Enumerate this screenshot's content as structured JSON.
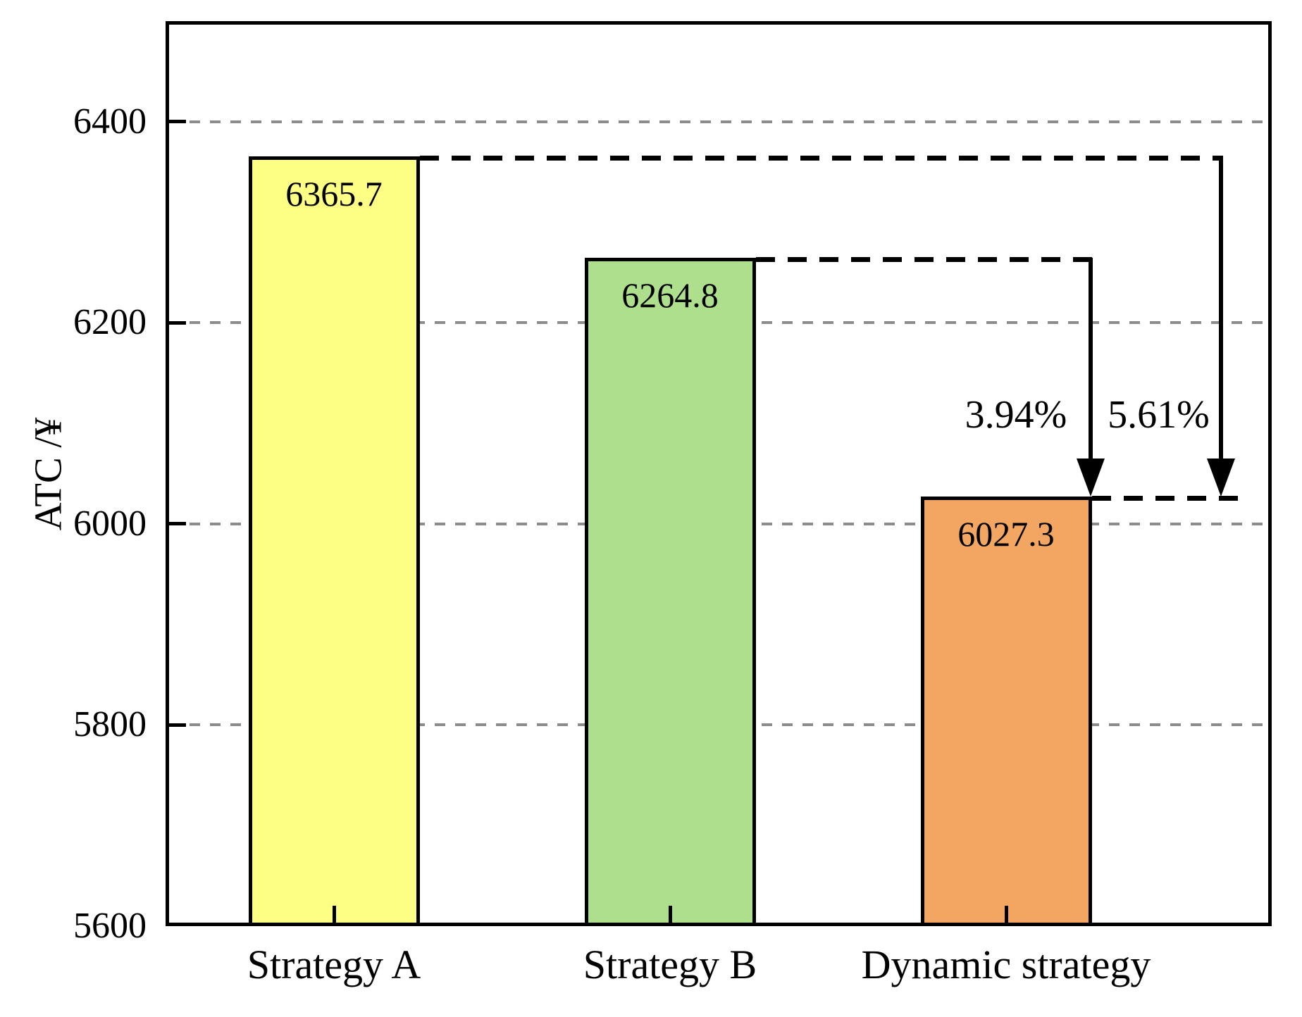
{
  "chart_data": {
    "type": "bar",
    "title": "",
    "categories": [
      "Strategy A",
      "Strategy B",
      "Dynamic strategy"
    ],
    "values": [
      6365.7,
      6264.8,
      6027.3
    ],
    "bar_labels": [
      "6365.7",
      "6264.8",
      "6027.3"
    ],
    "bar_colors": [
      "#fdff85",
      "#aedf8c",
      "#f2a661"
    ],
    "bar_border_color": "#000000",
    "xlabel": "",
    "ylabel": "ATC /¥",
    "ylim": [
      5600,
      6500
    ],
    "yticks": [
      5600,
      5800,
      6000,
      6200,
      6400
    ],
    "grid": {
      "show": true,
      "style": "dashed",
      "color": "#8c8c8c",
      "at": [
        5800,
        6000,
        6200,
        6400
      ]
    },
    "legend": {
      "position": "none"
    },
    "annotations": [
      {
        "text": "3.94%"
      },
      {
        "text": "5.61%"
      }
    ],
    "arrows": [
      {
        "from_category": "Strategy B",
        "to_category": "Dynamic strategy",
        "label": "3.94%"
      },
      {
        "from_category": "Strategy A",
        "to_category": "Dynamic strategy",
        "label": "5.61%"
      }
    ]
  }
}
